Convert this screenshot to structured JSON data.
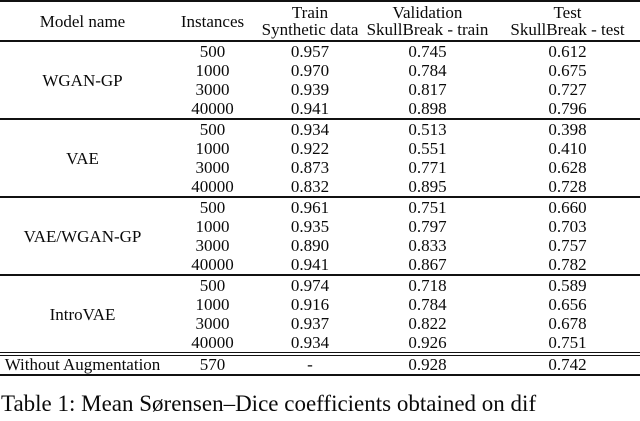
{
  "table": {
    "headers": {
      "model": "Model name",
      "instances": "Instances",
      "train_line1": "Train",
      "train_line2": "Synthetic data",
      "validation_line1": "Validation",
      "validation_line2": "SkullBreak - train",
      "test_line1": "Test",
      "test_line2": "SkullBreak - test"
    },
    "groups": [
      {
        "model": "WGAN-GP",
        "rows": [
          {
            "instances": "500",
            "train": "0.957",
            "validation": "0.745",
            "test": "0.612"
          },
          {
            "instances": "1000",
            "train": "0.970",
            "validation": "0.784",
            "test": "0.675"
          },
          {
            "instances": "3000",
            "train": "0.939",
            "validation": "0.817",
            "test": "0.727"
          },
          {
            "instances": "40000",
            "train": "0.941",
            "validation": "0.898",
            "test": "0.796"
          }
        ]
      },
      {
        "model": "VAE",
        "rows": [
          {
            "instances": "500",
            "train": "0.934",
            "validation": "0.513",
            "test": "0.398"
          },
          {
            "instances": "1000",
            "train": "0.922",
            "validation": "0.551",
            "test": "0.410"
          },
          {
            "instances": "3000",
            "train": "0.873",
            "validation": "0.771",
            "test": "0.628"
          },
          {
            "instances": "40000",
            "train": "0.832",
            "validation": "0.895",
            "test": "0.728"
          }
        ]
      },
      {
        "model": "VAE/WGAN-GP",
        "rows": [
          {
            "instances": "500",
            "train": "0.961",
            "validation": "0.751",
            "test": "0.660"
          },
          {
            "instances": "1000",
            "train": "0.935",
            "validation": "0.797",
            "test": "0.703"
          },
          {
            "instances": "3000",
            "train": "0.890",
            "validation": "0.833",
            "test": "0.757"
          },
          {
            "instances": "40000",
            "train": "0.941",
            "validation": "0.867",
            "test": "0.782"
          }
        ]
      },
      {
        "model": "IntroVAE",
        "rows": [
          {
            "instances": "500",
            "train": "0.974",
            "validation": "0.718",
            "test": "0.589"
          },
          {
            "instances": "1000",
            "train": "0.916",
            "validation": "0.784",
            "test": "0.656"
          },
          {
            "instances": "3000",
            "train": "0.937",
            "validation": "0.822",
            "test": "0.678"
          },
          {
            "instances": "40000",
            "train": "0.934",
            "validation": "0.926",
            "test": "0.751"
          }
        ]
      }
    ],
    "footer": {
      "model": "Without Augmentation",
      "instances": "570",
      "train": "-",
      "validation": "0.928",
      "test": "0.742"
    }
  },
  "caption": "Table 1: Mean Sørensen–Dice coefficients obtained on dif"
}
